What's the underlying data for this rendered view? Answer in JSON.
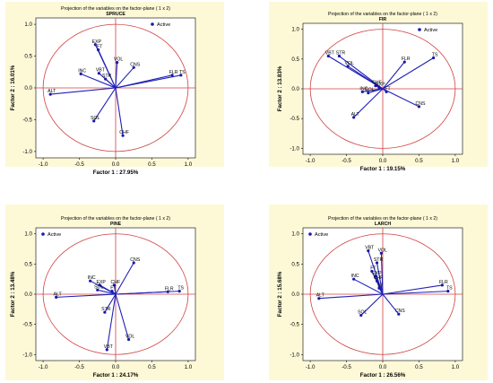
{
  "legend_label": "Active",
  "chart_data": [
    {
      "type": "scatter",
      "title": "Projection of the variables on the factor-plane (  1 x   2)",
      "subtitle": "SPRUCE",
      "xlabel": "Factor 1 : 27.95%",
      "ylabel": "Factor 2 : 16.01%",
      "xlim": [
        -1.1,
        1.1
      ],
      "ylim": [
        -1.1,
        1.1
      ],
      "xticks": [
        "-1.0",
        "-0.5",
        "0.0",
        "0.5",
        "1.0"
      ],
      "yticks": [
        "1.0",
        "0.5",
        "0.0",
        "-0.5",
        "-1.0"
      ],
      "colors": {
        "vector": "#2020b8",
        "circle": "#d04040"
      },
      "points": [
        {
          "label": "EXP",
          "x": -0.28,
          "y": 0.68
        },
        {
          "label": "FT",
          "x": -0.24,
          "y": 0.6
        },
        {
          "label": "INC",
          "x": -0.48,
          "y": 0.22
        },
        {
          "label": "VBT",
          "x": -0.23,
          "y": 0.23
        },
        {
          "label": "STR",
          "x": -0.14,
          "y": 0.14
        },
        {
          "label": "VOL",
          "x": 0.02,
          "y": 0.4
        },
        {
          "label": "CNS",
          "x": 0.25,
          "y": 0.32
        },
        {
          "label": "FLR",
          "x": 0.78,
          "y": 0.2
        },
        {
          "label": "TS",
          "x": 0.9,
          "y": 0.2
        },
        {
          "label": "ALT",
          "x": -0.9,
          "y": -0.1
        },
        {
          "label": "SOL",
          "x": -0.3,
          "y": -0.52
        },
        {
          "label": "CHF",
          "x": 0.1,
          "y": -0.75
        }
      ]
    },
    {
      "type": "scatter",
      "title": "Projection of the variables on the factor-plane (  1 x   2)",
      "subtitle": "FIR",
      "xlabel": "Factor 1 : 19.15%",
      "ylabel": "Factor 2 : 13.83%",
      "xlim": [
        -1.1,
        1.1
      ],
      "ylim": [
        -1.1,
        1.1
      ],
      "xticks": [
        "-1.0",
        "-0.5",
        "0.0",
        "0.5",
        "1.0"
      ],
      "yticks": [
        "1.0",
        "0.5",
        "0.0",
        "-0.5",
        "-1.0"
      ],
      "colors": {
        "vector": "#2020b8",
        "circle": "#d04040"
      },
      "points": [
        {
          "label": "VBT",
          "x": -0.75,
          "y": 0.55
        },
        {
          "label": "STR",
          "x": -0.6,
          "y": 0.55
        },
        {
          "label": "VOL",
          "x": -0.48,
          "y": 0.38
        },
        {
          "label": "FLR",
          "x": 0.3,
          "y": 0.45
        },
        {
          "label": "TS",
          "x": 0.7,
          "y": 0.52
        },
        {
          "label": "CHF",
          "x": -0.1,
          "y": 0.05
        },
        {
          "label": "EXP",
          "x": -0.05,
          "y": 0.02
        },
        {
          "label": "INC",
          "x": -0.28,
          "y": -0.05
        },
        {
          "label": "SOL",
          "x": -0.2,
          "y": -0.07
        },
        {
          "label": "FT",
          "x": 0.05,
          "y": -0.05
        },
        {
          "label": "ALT",
          "x": -0.4,
          "y": -0.48
        },
        {
          "label": "CNS",
          "x": 0.5,
          "y": -0.3
        }
      ]
    },
    {
      "type": "scatter",
      "title": "Projection of the variables on the factor-plane (  1 x   2)",
      "subtitle": "PINE",
      "xlabel": "Factor 1 : 24.17%",
      "ylabel": "Factor 2 : 13.48%",
      "xlim": [
        -1.1,
        1.1
      ],
      "ylim": [
        -1.1,
        1.1
      ],
      "xticks": [
        "-1.0",
        "-0.5",
        "0.0",
        "0.5",
        "1.0"
      ],
      "yticks": [
        "1.0",
        "0.5",
        "0.0",
        "-0.5",
        "-1.0"
      ],
      "colors": {
        "vector": "#2020b8",
        "circle": "#d04040"
      },
      "points": [
        {
          "label": "CNS",
          "x": 0.25,
          "y": 0.52
        },
        {
          "label": "INC",
          "x": -0.35,
          "y": 0.22
        },
        {
          "label": "EXP",
          "x": -0.22,
          "y": 0.15
        },
        {
          "label": "CHF",
          "x": -0.02,
          "y": 0.15
        },
        {
          "label": "SOL",
          "x": -0.25,
          "y": 0.07
        },
        {
          "label": "FT",
          "x": -0.05,
          "y": 0.05
        },
        {
          "label": "FLR",
          "x": 0.72,
          "y": 0.04
        },
        {
          "label": "TS",
          "x": 0.88,
          "y": 0.05
        },
        {
          "label": "ALT",
          "x": -0.82,
          "y": -0.05
        },
        {
          "label": "STR",
          "x": -0.15,
          "y": -0.3
        },
        {
          "label": "VOL",
          "x": 0.18,
          "y": -0.75
        },
        {
          "label": "VBT",
          "x": -0.12,
          "y": -0.92
        }
      ]
    },
    {
      "type": "scatter",
      "title": "Projection of the variables on the factor-plane (  1 x   2)",
      "subtitle": "LARCH",
      "xlabel": "Factor 1 : 26.56%",
      "ylabel": "Factor 2 : 15.68%",
      "xlim": [
        -1.1,
        1.1
      ],
      "ylim": [
        -1.1,
        1.1
      ],
      "xticks": [
        "-1.0",
        "-0.5",
        "0.0",
        "0.5",
        "1.0"
      ],
      "yticks": [
        "1.0",
        "0.5",
        "0.0",
        "-0.5",
        "-1.0"
      ],
      "colors": {
        "vector": "#2020b8",
        "circle": "#d04040"
      },
      "points": [
        {
          "label": "VBT",
          "x": -0.2,
          "y": 0.72
        },
        {
          "label": "VOL",
          "x": -0.02,
          "y": 0.68
        },
        {
          "label": "STR",
          "x": -0.08,
          "y": 0.52
        },
        {
          "label": "FT",
          "x": -0.15,
          "y": 0.38
        },
        {
          "label": "EXP",
          "x": -0.1,
          "y": 0.3
        },
        {
          "label": "CHF",
          "x": -0.08,
          "y": 0.22
        },
        {
          "label": "INC",
          "x": -0.4,
          "y": 0.25
        },
        {
          "label": "LF",
          "x": -0.05,
          "y": 0.1
        },
        {
          "label": "FLR",
          "x": 0.82,
          "y": 0.15
        },
        {
          "label": "TS",
          "x": 0.9,
          "y": 0.05
        },
        {
          "label": "ALT",
          "x": -0.88,
          "y": -0.07
        },
        {
          "label": "SOL",
          "x": -0.3,
          "y": -0.35
        },
        {
          "label": "CNS",
          "x": 0.22,
          "y": -0.33
        }
      ]
    }
  ]
}
